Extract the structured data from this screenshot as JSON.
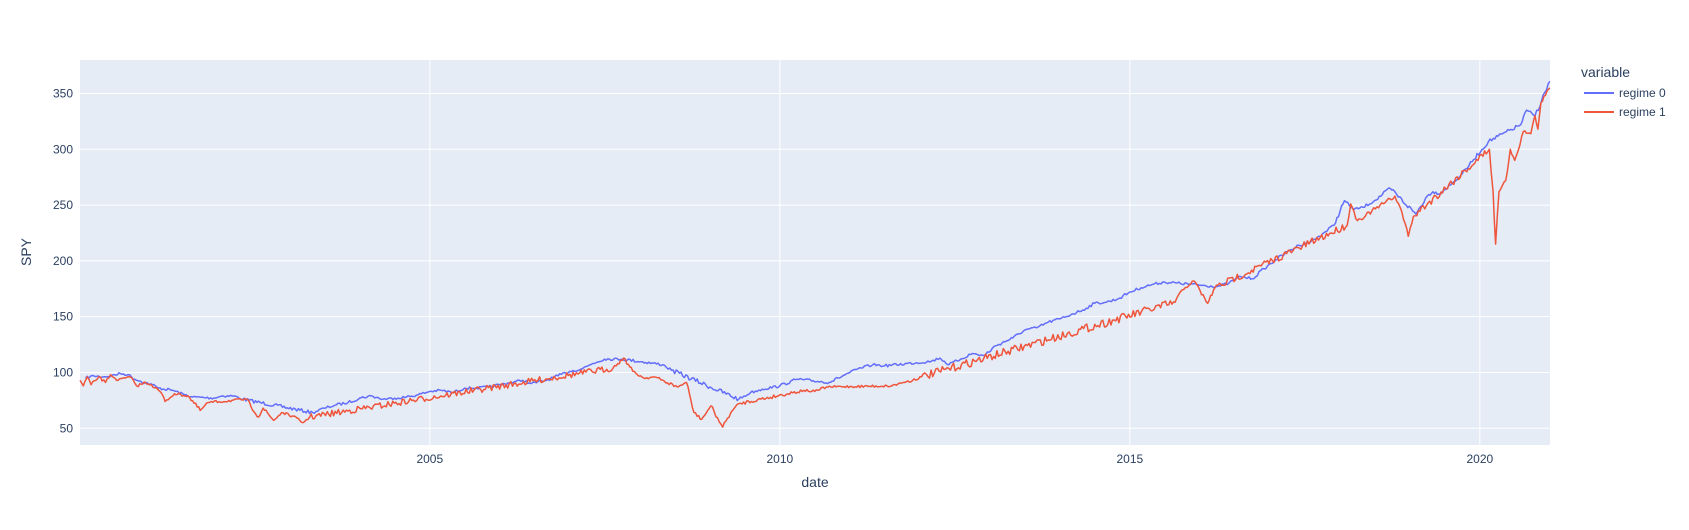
{
  "chart_data": {
    "type": "line",
    "xlabel": "date",
    "ylabel": "SPY",
    "x_ticks": [
      "2005",
      "2010",
      "2015",
      "2020"
    ],
    "y_ticks": [
      50,
      100,
      150,
      200,
      250,
      300,
      350
    ],
    "xlim": [
      "2000-01-03",
      "2021-01-01"
    ],
    "ylim": [
      35,
      380
    ],
    "grid": true,
    "legend": {
      "title": "variable",
      "placement": "top-right outside",
      "entries": [
        "regime 0",
        "regime 1"
      ]
    },
    "colors": {
      "regime 0": "#636efa",
      "regime 1": "#ef553b",
      "plot_bg": "#e5ecf6",
      "grid": "#ffffff",
      "text": "#2a3f5f"
    },
    "series": [
      {
        "name": "regime 0",
        "points": [
          [
            "2000-02-01",
            95
          ],
          [
            "2000-03-15",
            97
          ],
          [
            "2000-05-01",
            96
          ],
          [
            "2000-06-15",
            97
          ],
          [
            "2000-08-01",
            99
          ],
          [
            "2000-09-10",
            98
          ],
          [
            "2000-10-15",
            94
          ],
          [
            "2000-11-15",
            92
          ],
          [
            "2001-01-15",
            89
          ],
          [
            "2001-02-15",
            86
          ],
          [
            "2001-05-01",
            84
          ],
          [
            "2001-07-01",
            80
          ],
          [
            "2001-08-15",
            78
          ],
          [
            "2001-12-01",
            77
          ],
          [
            "2002-01-15",
            79
          ],
          [
            "2002-03-15",
            79
          ],
          [
            "2002-05-01",
            76
          ],
          [
            "2003-05-01",
            64
          ],
          [
            "2003-07-01",
            68
          ],
          [
            "2003-09-01",
            71
          ],
          [
            "2003-11-01",
            73
          ],
          [
            "2004-01-01",
            77
          ],
          [
            "2004-03-01",
            79
          ],
          [
            "2004-05-01",
            76
          ],
          [
            "2004-07-01",
            77
          ],
          [
            "2004-09-01",
            78
          ],
          [
            "2004-11-01",
            80
          ],
          [
            "2005-01-01",
            83
          ],
          [
            "2005-03-01",
            84
          ],
          [
            "2005-05-01",
            82
          ],
          [
            "2005-07-01",
            86
          ],
          [
            "2005-09-01",
            86
          ],
          [
            "2005-11-01",
            87
          ],
          [
            "2006-01-01",
            89
          ],
          [
            "2006-03-01",
            91
          ],
          [
            "2006-05-01",
            93
          ],
          [
            "2006-06-15",
            90
          ],
          [
            "2006-09-01",
            93
          ],
          [
            "2006-11-01",
            97
          ],
          [
            "2007-01-01",
            101
          ],
          [
            "2007-03-01",
            103
          ],
          [
            "2007-05-01",
            108
          ],
          [
            "2007-07-01",
            112
          ],
          [
            "2007-10-01",
            112
          ],
          [
            "2008-05-01",
            107
          ],
          [
            "2008-06-15",
            102
          ],
          [
            "2009-06-01",
            76
          ],
          [
            "2009-08-01",
            82
          ],
          [
            "2009-10-01",
            85
          ],
          [
            "2010-01-01",
            88
          ],
          [
            "2010-04-01",
            94
          ],
          [
            "2010-09-15",
            91
          ],
          [
            "2010-11-01",
            95
          ],
          [
            "2011-01-01",
            100
          ],
          [
            "2011-03-01",
            104
          ],
          [
            "2011-05-01",
            107
          ],
          [
            "2011-07-01",
            106
          ],
          [
            "2012-03-01",
            110
          ],
          [
            "2012-04-15",
            113
          ],
          [
            "2012-06-01",
            107
          ],
          [
            "2012-08-01",
            112
          ],
          [
            "2012-10-01",
            117
          ],
          [
            "2012-12-01",
            115
          ],
          [
            "2013-02-01",
            124
          ],
          [
            "2013-05-01",
            131
          ],
          [
            "2013-07-01",
            138
          ],
          [
            "2013-09-01",
            140
          ],
          [
            "2013-11-01",
            145
          ],
          [
            "2014-01-01",
            148
          ],
          [
            "2014-03-01",
            152
          ],
          [
            "2014-05-01",
            156
          ],
          [
            "2014-07-01",
            162
          ],
          [
            "2014-09-01",
            163
          ],
          [
            "2014-11-01",
            166
          ],
          [
            "2015-01-01",
            172
          ],
          [
            "2015-03-01",
            176
          ],
          [
            "2015-05-01",
            179
          ],
          [
            "2015-07-01",
            181
          ],
          [
            "2016-04-01",
            177
          ],
          [
            "2016-06-01",
            180
          ],
          [
            "2016-08-01",
            186
          ],
          [
            "2016-10-01",
            184
          ],
          [
            "2016-12-01",
            193
          ],
          [
            "2017-02-01",
            201
          ],
          [
            "2017-04-01",
            208
          ],
          [
            "2017-06-01",
            214
          ],
          [
            "2017-08-01",
            217
          ],
          [
            "2017-10-01",
            224
          ],
          [
            "2017-12-01",
            232
          ],
          [
            "2018-01-25",
            254
          ],
          [
            "2018-03-15",
            246
          ],
          [
            "2018-05-01",
            248
          ],
          [
            "2018-07-01",
            254
          ],
          [
            "2018-09-20",
            265
          ],
          [
            "2019-02-01",
            242
          ],
          [
            "2019-04-01",
            258
          ],
          [
            "2019-05-01",
            262
          ],
          [
            "2019-06-01",
            260
          ],
          [
            "2019-08-01",
            268
          ],
          [
            "2019-10-01",
            278
          ],
          [
            "2019-12-01",
            291
          ],
          [
            "2020-02-15",
            307
          ],
          [
            "2020-08-01",
            322
          ],
          [
            "2020-09-01",
            335
          ],
          [
            "2020-10-15",
            330
          ],
          [
            "2020-12-31",
            361
          ]
        ]
      },
      {
        "name": "regime 1",
        "points": [
          [
            "2000-01-03",
            93
          ],
          [
            "2000-01-20",
            88
          ],
          [
            "2000-02-10",
            96
          ],
          [
            "2000-03-01",
            89
          ],
          [
            "2000-04-10",
            96
          ],
          [
            "2000-05-15",
            91
          ],
          [
            "2000-06-10",
            98
          ],
          [
            "2000-07-20",
            93
          ],
          [
            "2000-09-20",
            96
          ],
          [
            "2000-10-25",
            88
          ],
          [
            "2000-12-10",
            91
          ],
          [
            "2001-01-10",
            89
          ],
          [
            "2001-03-01",
            82
          ],
          [
            "2001-03-22",
            74
          ],
          [
            "2001-05-10",
            81
          ],
          [
            "2001-07-20",
            79
          ],
          [
            "2001-09-21",
            66
          ],
          [
            "2001-11-01",
            73
          ],
          [
            "2002-05-20",
            76
          ],
          [
            "2002-07-23",
            60
          ],
          [
            "2002-08-15",
            68
          ],
          [
            "2002-10-09",
            57
          ],
          [
            "2002-11-20",
            64
          ],
          [
            "2003-01-15",
            61
          ],
          [
            "2003-03-11",
            55
          ],
          [
            "2003-04-15",
            60
          ],
          [
            "2007-08-15",
            104
          ],
          [
            "2007-10-10",
            113
          ],
          [
            "2007-11-26",
            101
          ],
          [
            "2008-01-22",
            95
          ],
          [
            "2008-03-17",
            96
          ],
          [
            "2008-07-15",
            87
          ],
          [
            "2008-09-01",
            91
          ],
          [
            "2008-10-10",
            64
          ],
          [
            "2008-11-20",
            58
          ],
          [
            "2009-01-06",
            70
          ],
          [
            "2009-03-09",
            51
          ],
          [
            "2009-04-20",
            64
          ],
          [
            "2009-06-01",
            72
          ],
          [
            "2010-05-06",
            84
          ],
          [
            "2010-07-02",
            83
          ],
          [
            "2010-09-01",
            87
          ],
          [
            "2011-08-08",
            88
          ],
          [
            "2011-10-04",
            91
          ],
          [
            "2011-11-25",
            93
          ],
          [
            "2012-01-10",
            96
          ],
          [
            "2015-08-25",
            163
          ],
          [
            "2015-10-01",
            174
          ],
          [
            "2015-12-01",
            182
          ],
          [
            "2016-02-11",
            162
          ],
          [
            "2016-03-20",
            176
          ],
          [
            "2018-02-08",
            232
          ],
          [
            "2018-02-26",
            251
          ],
          [
            "2018-04-02",
            236
          ],
          [
            "2018-10-15",
            258
          ],
          [
            "2018-11-20",
            244
          ],
          [
            "2018-12-24",
            222
          ],
          [
            "2019-01-20",
            240
          ],
          [
            "2020-02-20",
            300
          ],
          [
            "2020-03-10",
            262
          ],
          [
            "2020-03-23",
            215
          ],
          [
            "2020-04-10",
            262
          ],
          [
            "2020-05-15",
            272
          ],
          [
            "2020-06-08",
            300
          ],
          [
            "2020-07-01",
            290
          ],
          [
            "2020-08-15",
            316
          ],
          [
            "2020-09-23",
            314
          ],
          [
            "2020-10-15",
            330
          ],
          [
            "2020-10-30",
            318
          ],
          [
            "2020-11-15",
            342
          ],
          [
            "2020-12-31",
            355
          ]
        ]
      }
    ]
  }
}
